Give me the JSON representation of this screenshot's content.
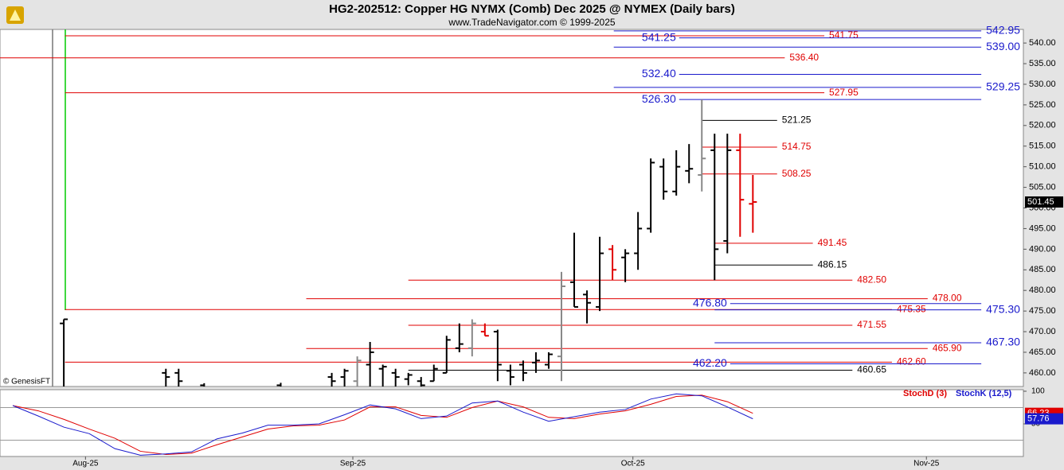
{
  "chart_data": {
    "type": "ohlc",
    "title": "HG2-202512:  Copper HG NYMX (Comb) Dec 2025 @ NYMEX  (Daily bars)",
    "subtitle": "www.TradeNavigator.com © 1999-2025",
    "watermark": "© GenesisFT",
    "x": [
      5,
      13,
      14,
      16,
      22,
      26,
      27,
      28,
      29,
      30,
      31,
      32,
      33,
      34,
      35,
      36,
      37,
      38,
      39,
      40,
      41,
      42,
      43,
      44,
      45,
      46,
      47,
      48,
      49,
      50,
      51,
      52,
      53,
      54,
      55,
      56,
      57,
      58,
      59
    ],
    "open": [
      472,
      460,
      460,
      457,
      457,
      459,
      459,
      458,
      462,
      461,
      460,
      458.5,
      458,
      458,
      460,
      466,
      466,
      470,
      470,
      460.5,
      462,
      462.5,
      462,
      464,
      482,
      479,
      476,
      490,
      488,
      489,
      495,
      510,
      504,
      509,
      508,
      514,
      492,
      514,
      501
    ],
    "high": [
      473,
      461,
      461,
      457.5,
      457.6,
      460,
      461,
      464,
      467.5,
      462,
      461,
      460,
      459,
      462,
      469,
      472,
      473,
      472,
      470.5,
      462,
      463,
      465,
      465,
      484.5,
      494,
      480,
      493,
      491,
      490,
      499,
      512,
      512,
      514,
      515.5,
      526.3,
      518,
      518,
      518,
      508
    ],
    "low": [
      450,
      455,
      455,
      450,
      450,
      455,
      456,
      456,
      456,
      455,
      455,
      457,
      455,
      458,
      460,
      465,
      464,
      469,
      458,
      457,
      458,
      460,
      461,
      458,
      476,
      472,
      475,
      482.5,
      482,
      485,
      494,
      502,
      503,
      506,
      504,
      482.5,
      489,
      493,
      494
    ],
    "close": [
      473,
      459,
      458,
      456,
      456,
      458,
      460.5,
      463,
      465,
      461.5,
      459,
      459.5,
      457,
      461,
      468,
      467,
      472,
      469,
      462,
      459,
      460,
      463,
      464.5,
      481,
      476,
      477,
      489,
      485,
      489,
      495,
      511,
      504,
      510,
      509.5,
      512,
      490,
      514,
      502,
      501.45
    ],
    "colors": [
      "#000",
      "#000",
      "#000",
      "#000",
      "#000",
      "#000",
      "#000",
      "#888",
      "#000",
      "#000",
      "#000",
      "#000",
      "#000",
      "#000",
      "#000",
      "#000",
      "#888",
      "#e00000",
      "#000",
      "#000",
      "#000",
      "#000",
      "#000",
      "#888",
      "#000",
      "#000",
      "#000",
      "#e00000",
      "#000",
      "#000",
      "#000",
      "#000",
      "#000",
      "#000",
      "#888",
      "#000",
      "#000",
      "#e00000",
      "#e00000"
    ],
    "xlim": [
      0,
      80.2
    ],
    "xticks": [
      {
        "value": 6.7,
        "label": "Aug-25"
      },
      {
        "value": 27.65,
        "label": "Sep-25"
      },
      {
        "value": 49.6,
        "label": "Oct-25"
      },
      {
        "value": 72.6,
        "label": "Nov-25"
      }
    ],
    "ylim": [
      456.7,
      543.3
    ],
    "yticks": [
      {
        "value": 460,
        "label": "460.00"
      },
      {
        "value": 465,
        "label": "465.00"
      },
      {
        "value": 470,
        "label": "470.00"
      },
      {
        "value": 475,
        "label": "475.00"
      },
      {
        "value": 480,
        "label": "480.00"
      },
      {
        "value": 485,
        "label": "485.00"
      },
      {
        "value": 490,
        "label": "490.00"
      },
      {
        "value": 495,
        "label": "495.00"
      },
      {
        "value": 500,
        "label": "500.00"
      },
      {
        "value": 505,
        "label": "505.00"
      },
      {
        "value": 510,
        "label": "510.00"
      },
      {
        "value": 515,
        "label": "515.00"
      },
      {
        "value": 520,
        "label": "520.00"
      },
      {
        "value": 525,
        "label": "525.00"
      },
      {
        "value": 530,
        "label": "530.00"
      },
      {
        "value": 535,
        "label": "535.00"
      },
      {
        "value": 540,
        "label": "540.00"
      }
    ],
    "last_price": 501.45,
    "levels": [
      {
        "value": 541.75,
        "label": "541.75",
        "color": "#e00000",
        "x0": 5.1,
        "x1": 64.6,
        "label_at": "end"
      },
      {
        "value": 536.4,
        "label": "536.40",
        "color": "#e00000",
        "x0": 0,
        "x1": 61.5,
        "label_at": "end"
      },
      {
        "value": 527.95,
        "label": "527.95",
        "color": "#e00000",
        "x0": 5.1,
        "x1": 64.6,
        "label_at": "end"
      },
      {
        "value": 514.75,
        "label": "514.75",
        "color": "#e00000",
        "x0": 55,
        "x1": 60.9,
        "label_at": "end"
      },
      {
        "value": 508.25,
        "label": "508.25",
        "color": "#e00000",
        "x0": 55,
        "x1": 60.9,
        "label_at": "end"
      },
      {
        "value": 491.45,
        "label": "491.45",
        "color": "#e00000",
        "x0": 56,
        "x1": 63.7,
        "label_at": "end"
      },
      {
        "value": 482.5,
        "label": "482.50",
        "color": "#e00000",
        "x0": 32,
        "x1": 66.8,
        "label_at": "end"
      },
      {
        "value": 478,
        "label": "478.00",
        "color": "#e00000",
        "x0": 24,
        "x1": 72.7,
        "label_at": "end"
      },
      {
        "value": 475.35,
        "label": "475.35",
        "color": "#e00000",
        "x0": 5.1,
        "x1": 69.9,
        "label_at": "end"
      },
      {
        "value": 471.55,
        "label": "471.55",
        "color": "#e00000",
        "x0": 32,
        "x1": 66.8,
        "label_at": "end"
      },
      {
        "value": 465.9,
        "label": "465.90",
        "color": "#e00000",
        "x0": 24,
        "x1": 72.7,
        "label_at": "end"
      },
      {
        "value": 462.6,
        "label": "462.60",
        "color": "#e00000",
        "x0": 5.1,
        "x1": 69.9,
        "label_at": "end"
      },
      {
        "value": 521.25,
        "label": "521.25",
        "color": "#000",
        "x0": 55,
        "x1": 60.9,
        "label_at": "end"
      },
      {
        "value": 486.15,
        "label": "486.15",
        "color": "#000",
        "x0": 56,
        "x1": 63.7,
        "label_at": "end"
      },
      {
        "value": 460.65,
        "label": "460.65",
        "color": "#000",
        "x0": 32,
        "x1": 66.8,
        "label_at": "end"
      },
      {
        "value": 542.95,
        "label": "542.95",
        "color": "#1a1acc",
        "x0": 48.1,
        "x1": 76.9,
        "label_at": "end"
      },
      {
        "value": 541.25,
        "label": "541.25",
        "color": "#1a1acc",
        "x0": 50.3,
        "x1": 76.9,
        "label_at": "start"
      },
      {
        "value": 539,
        "label": "539.00",
        "color": "#1a1acc",
        "x0": 48.1,
        "x1": 76.9,
        "label_at": "end"
      },
      {
        "value": 532.4,
        "label": "532.40",
        "color": "#1a1acc",
        "x0": 50.3,
        "x1": 76.9,
        "label_at": "start"
      },
      {
        "value": 529.25,
        "label": "529.25",
        "color": "#1a1acc",
        "x0": 48.1,
        "x1": 76.9,
        "label_at": "end"
      },
      {
        "value": 526.3,
        "label": "526.30",
        "color": "#1a1acc",
        "x0": 50.3,
        "x1": 76.9,
        "label_at": "start"
      },
      {
        "value": 476.8,
        "label": "476.80",
        "color": "#1a1acc",
        "x0": 54.3,
        "x1": 76.9,
        "label_at": "start"
      },
      {
        "value": 475.3,
        "label": "475.30",
        "color": "#1a1acc",
        "x0": 56,
        "x1": 76.9,
        "label_at": "end"
      },
      {
        "value": 467.3,
        "label": "467.30",
        "color": "#1a1acc",
        "x0": 56,
        "x1": 76.9,
        "label_at": "end"
      },
      {
        "value": 462.2,
        "label": "462.20",
        "color": "#1a1acc",
        "x0": 54.3,
        "x1": 76.9,
        "label_at": "start"
      }
    ],
    "stoch": {
      "x": [
        1,
        3,
        5,
        7,
        9,
        11,
        13,
        15,
        17,
        19,
        21,
        23,
        25,
        27,
        29,
        31,
        33,
        35,
        37,
        39,
        41,
        43,
        45,
        47,
        49,
        51,
        53,
        55,
        57,
        59
      ],
      "ylim": [
        0,
        102.4
      ],
      "yticks": [
        50,
        100
      ],
      "ref_lines": [
        75,
        25
      ],
      "series": [
        {
          "name": "StochD (3)",
          "color": "#e00000",
          "values": [
            78,
            70,
            57,
            42,
            28,
            8,
            3,
            5,
            18,
            30,
            42,
            47,
            48,
            56,
            76,
            76,
            63,
            60,
            75,
            85,
            76,
            60,
            58,
            65,
            70,
            80,
            92,
            94,
            84,
            66.23
          ]
        },
        {
          "name": "StochK (12,5)",
          "color": "#1a1acc",
          "values": [
            78,
            62,
            45,
            35,
            12,
            2,
            4,
            7,
            27,
            36,
            48,
            48,
            50,
            64,
            79,
            73,
            58,
            62,
            82,
            85,
            68,
            54,
            61,
            68,
            72,
            88,
            96,
            93,
            76,
            57.76
          ]
        }
      ]
    }
  }
}
